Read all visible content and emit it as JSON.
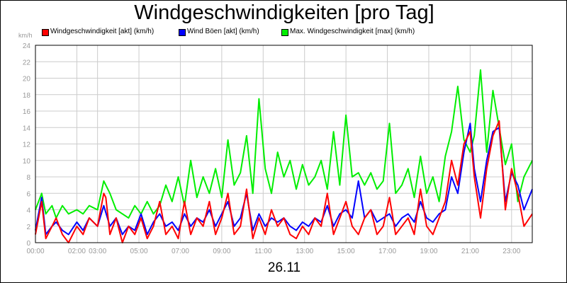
{
  "chart_data": {
    "type": "line",
    "title": "Windgeschwindigkeiten [pro Tag]",
    "ylabel": "km/h",
    "xlabel": "26.11",
    "ylim": [
      0,
      24
    ],
    "xlim": [
      0,
      24
    ],
    "grid": true,
    "legend_placement": "top",
    "y_ticks": [
      0,
      2,
      4,
      6,
      8,
      10,
      12,
      14,
      16,
      18,
      20,
      22,
      24
    ],
    "x_ticks": [
      {
        "label": "00:00",
        "value": 0
      },
      {
        "label": "02:00",
        "value": 2
      },
      {
        "label": "03:00",
        "value": 3
      },
      {
        "label": "05:00",
        "value": 5
      },
      {
        "label": "07:00",
        "value": 7
      },
      {
        "label": "09:00",
        "value": 9
      },
      {
        "label": "11:00",
        "value": 11
      },
      {
        "label": "13:00",
        "value": 13
      },
      {
        "label": "15:00",
        "value": 15
      },
      {
        "label": "17:00",
        "value": 17
      },
      {
        "label": "19:00",
        "value": 19
      },
      {
        "label": "21:00",
        "value": 21
      },
      {
        "label": "23:00",
        "value": 23
      }
    ],
    "series": [
      {
        "name": "Windgeschwindigkeit [akt] (km/h)",
        "color": "#ff0000",
        "x": [
          0.0,
          0.3,
          0.5,
          0.8,
          1.0,
          1.3,
          1.6,
          2.0,
          2.3,
          2.6,
          3.0,
          3.3,
          3.4,
          3.6,
          3.9,
          4.2,
          4.5,
          4.8,
          5.1,
          5.4,
          5.7,
          6.0,
          6.3,
          6.6,
          6.9,
          7.2,
          7.5,
          7.8,
          8.1,
          8.4,
          8.7,
          9.0,
          9.3,
          9.6,
          9.9,
          10.2,
          10.5,
          10.8,
          11.1,
          11.4,
          11.7,
          12.0,
          12.3,
          12.6,
          12.9,
          13.2,
          13.5,
          13.8,
          14.1,
          14.4,
          14.7,
          15.0,
          15.3,
          15.6,
          15.9,
          16.2,
          16.5,
          16.8,
          17.1,
          17.4,
          17.7,
          18.0,
          18.3,
          18.6,
          18.9,
          19.2,
          19.5,
          19.8,
          20.1,
          20.4,
          20.7,
          21.0,
          21.2,
          21.5,
          21.8,
          22.1,
          22.4,
          22.7,
          23.0,
          23.3,
          23.6,
          24.0
        ],
        "values": [
          1.0,
          5.0,
          0.5,
          2.0,
          3.0,
          1.0,
          0.0,
          2.0,
          1.0,
          3.0,
          2.0,
          6.0,
          5.5,
          1.0,
          3.0,
          0.0,
          2.0,
          1.0,
          3.0,
          0.5,
          2.0,
          5.0,
          1.0,
          2.0,
          0.5,
          5.0,
          1.0,
          3.0,
          2.0,
          5.0,
          1.0,
          3.0,
          6.0,
          1.0,
          2.0,
          6.5,
          0.5,
          3.0,
          1.0,
          4.0,
          2.0,
          3.0,
          1.0,
          0.5,
          2.0,
          1.0,
          3.0,
          2.0,
          6.0,
          1.0,
          3.0,
          5.0,
          2.0,
          1.0,
          3.0,
          4.0,
          1.0,
          2.0,
          5.5,
          1.0,
          2.0,
          3.0,
          1.0,
          6.5,
          2.0,
          1.0,
          3.0,
          5.0,
          10.0,
          7.0,
          12.0,
          13.5,
          8.0,
          3.0,
          9.0,
          13.0,
          14.8,
          4.0,
          9.0,
          6.0,
          2.0,
          3.5
        ]
      },
      {
        "name": "Wind Böen [akt] (km/h)",
        "color": "#0000ff",
        "x": [
          0.0,
          0.3,
          0.5,
          0.8,
          1.0,
          1.3,
          1.6,
          2.0,
          2.3,
          2.6,
          3.0,
          3.3,
          3.6,
          3.9,
          4.2,
          4.5,
          4.8,
          5.1,
          5.4,
          5.7,
          6.0,
          6.3,
          6.6,
          6.9,
          7.2,
          7.5,
          7.8,
          8.1,
          8.4,
          8.7,
          9.0,
          9.3,
          9.6,
          9.9,
          10.2,
          10.5,
          10.8,
          11.1,
          11.4,
          11.7,
          12.0,
          12.3,
          12.6,
          12.9,
          13.2,
          13.5,
          13.8,
          14.1,
          14.4,
          14.7,
          15.0,
          15.3,
          15.6,
          15.9,
          16.2,
          16.5,
          16.8,
          17.1,
          17.4,
          17.7,
          18.0,
          18.3,
          18.6,
          18.9,
          19.2,
          19.5,
          19.8,
          20.1,
          20.4,
          20.7,
          21.0,
          21.2,
          21.5,
          21.8,
          22.1,
          22.4,
          22.7,
          23.0,
          23.3,
          23.6,
          24.0
        ],
        "values": [
          1.5,
          5.5,
          1.0,
          2.0,
          2.5,
          1.5,
          1.0,
          2.5,
          1.5,
          3.0,
          2.0,
          4.5,
          2.0,
          3.0,
          1.0,
          2.0,
          1.5,
          3.5,
          1.0,
          2.5,
          3.5,
          2.0,
          2.5,
          1.5,
          3.5,
          2.0,
          3.0,
          2.5,
          4.0,
          2.0,
          3.5,
          5.0,
          2.0,
          3.0,
          6.0,
          1.5,
          3.5,
          2.0,
          3.0,
          2.5,
          3.0,
          2.0,
          1.5,
          2.5,
          2.0,
          3.0,
          2.5,
          4.5,
          2.0,
          3.5,
          4.0,
          3.0,
          7.5,
          3.0,
          4.0,
          2.5,
          3.0,
          3.5,
          2.0,
          3.0,
          3.5,
          2.5,
          5.0,
          3.0,
          2.5,
          3.5,
          4.0,
          8.0,
          6.0,
          11.0,
          14.5,
          9.0,
          5.0,
          10.0,
          13.5,
          14.0,
          5.0,
          8.5,
          7.0,
          4.0,
          6.5
        ]
      },
      {
        "name": "Max. Windgeschwindigkeit [max] (km/h)",
        "color": "#00ee00",
        "x": [
          0.0,
          0.3,
          0.5,
          0.8,
          1.0,
          1.3,
          1.6,
          2.0,
          2.3,
          2.6,
          3.0,
          3.3,
          3.6,
          3.9,
          4.2,
          4.5,
          4.8,
          5.1,
          5.4,
          5.7,
          6.0,
          6.3,
          6.6,
          6.9,
          7.2,
          7.5,
          7.8,
          8.1,
          8.4,
          8.7,
          9.0,
          9.3,
          9.6,
          9.9,
          10.2,
          10.5,
          10.8,
          11.1,
          11.4,
          11.7,
          12.0,
          12.3,
          12.6,
          12.9,
          13.2,
          13.5,
          13.8,
          14.1,
          14.4,
          14.7,
          15.0,
          15.3,
          15.6,
          15.9,
          16.2,
          16.5,
          16.8,
          17.1,
          17.4,
          17.7,
          18.0,
          18.3,
          18.6,
          18.9,
          19.2,
          19.5,
          19.8,
          20.1,
          20.4,
          20.7,
          21.0,
          21.2,
          21.5,
          21.8,
          22.1,
          22.4,
          22.7,
          23.0,
          23.3,
          23.6,
          24.0
        ],
        "values": [
          4.0,
          6.0,
          3.5,
          4.5,
          3.0,
          4.5,
          3.5,
          4.0,
          3.5,
          4.5,
          4.0,
          7.5,
          6.0,
          4.0,
          3.5,
          3.0,
          4.5,
          3.5,
          5.0,
          3.5,
          4.5,
          7.0,
          5.0,
          8.0,
          4.5,
          10.0,
          5.5,
          8.0,
          6.0,
          9.0,
          5.5,
          12.5,
          7.0,
          8.5,
          13.0,
          6.0,
          17.5,
          9.0,
          6.0,
          11.0,
          8.0,
          10.0,
          6.5,
          9.5,
          7.0,
          8.0,
          10.0,
          6.5,
          13.5,
          7.0,
          15.5,
          8.0,
          8.5,
          7.0,
          8.5,
          6.5,
          7.5,
          14.5,
          6.0,
          7.0,
          9.0,
          5.5,
          10.5,
          6.0,
          8.0,
          5.0,
          10.5,
          13.5,
          19.0,
          12.5,
          11.0,
          13.0,
          21.0,
          11.0,
          18.5,
          14.0,
          9.5,
          12.0,
          5.0,
          8.0,
          10.0
        ]
      }
    ]
  }
}
